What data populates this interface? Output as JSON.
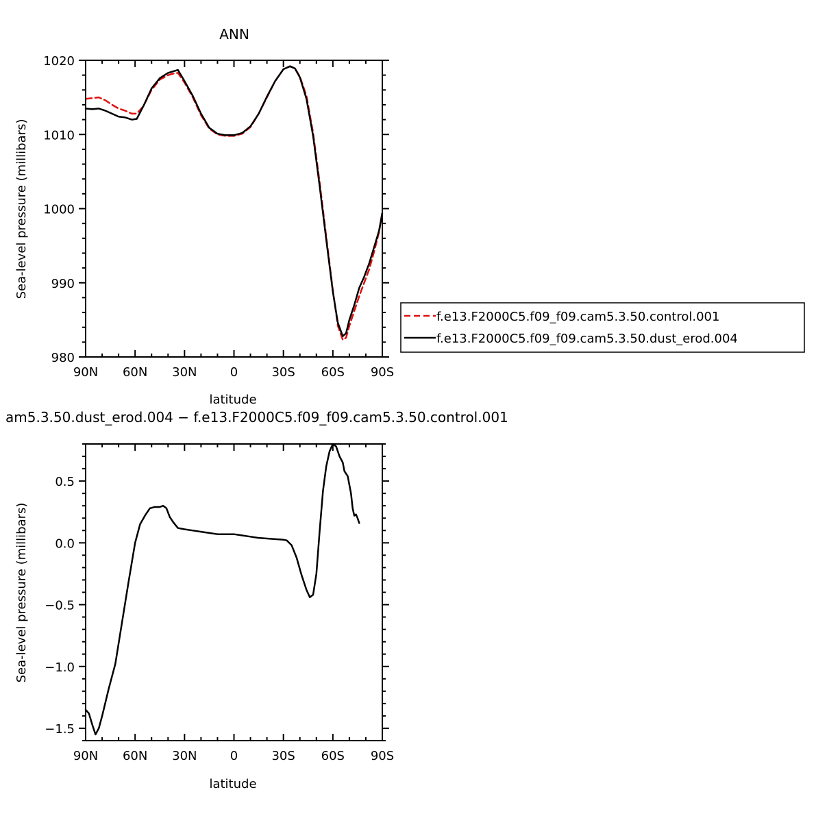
{
  "chart_data": [
    {
      "type": "line",
      "title": "ANN",
      "xlabel": "latitude",
      "ylabel": "Sea-level pressure (millibars)",
      "xlim": [
        -90,
        90
      ],
      "ylim": [
        980,
        1020
      ],
      "x_ticks": [
        -90,
        -60,
        -30,
        0,
        30,
        60,
        90
      ],
      "x_tick_labels": [
        "90N",
        "60N",
        "30N",
        "0",
        "30S",
        "60S",
        "90S"
      ],
      "y_ticks": [
        980,
        990,
        1000,
        1010,
        1020
      ],
      "y_tick_labels": [
        "980",
        "990",
        "1000",
        "1010",
        "1020"
      ],
      "legend_position": "right",
      "series": [
        {
          "name": "f.e13.F2000C5.f09_f09.cam5.3.50.control.001",
          "color": "#e01010",
          "dash": "dashed",
          "points": [
            [
              -90,
              1014.8
            ],
            [
              -86,
              1014.9
            ],
            [
              -82,
              1015.0
            ],
            [
              -78,
              1014.6
            ],
            [
              -74,
              1014.0
            ],
            [
              -70,
              1013.5
            ],
            [
              -66,
              1013.2
            ],
            [
              -62,
              1012.8
            ],
            [
              -59,
              1012.8
            ],
            [
              -55,
              1013.8
            ],
            [
              -50,
              1016.0
            ],
            [
              -45,
              1017.4
            ],
            [
              -40,
              1018.0
            ],
            [
              -37,
              1018.2
            ],
            [
              -34,
              1018.3
            ],
            [
              -30,
              1017.0
            ],
            [
              -25,
              1015.0
            ],
            [
              -20,
              1012.6
            ],
            [
              -15,
              1010.8
            ],
            [
              -10,
              1010.0
            ],
            [
              -5,
              1009.8
            ],
            [
              0,
              1009.8
            ],
            [
              5,
              1010.1
            ],
            [
              10,
              1011.0
            ],
            [
              15,
              1012.8
            ],
            [
              20,
              1015.0
            ],
            [
              25,
              1017.2
            ],
            [
              30,
              1018.8
            ],
            [
              34,
              1019.2
            ],
            [
              37,
              1018.9
            ],
            [
              40,
              1017.8
            ],
            [
              44,
              1015.2
            ],
            [
              48,
              1010.2
            ],
            [
              52,
              1003.5
            ],
            [
              56,
              996.2
            ],
            [
              60,
              989.0
            ],
            [
              63,
              984.2
            ],
            [
              66,
              982.3
            ],
            [
              68,
              982.6
            ],
            [
              70,
              984.2
            ],
            [
              73,
              986.2
            ],
            [
              76,
              988.2
            ],
            [
              79,
              990.0
            ],
            [
              82,
              991.8
            ],
            [
              85,
              994.2
            ],
            [
              88,
              996.8
            ],
            [
              90,
              999.5
            ]
          ]
        },
        {
          "name": "f.e13.F2000C5.f09_f09.cam5.3.50.dust_erod.004",
          "color": "#000000",
          "dash": "solid",
          "points": [
            [
              -90,
              1013.5
            ],
            [
              -86,
              1013.4
            ],
            [
              -82,
              1013.5
            ],
            [
              -78,
              1013.2
            ],
            [
              -74,
              1012.8
            ],
            [
              -70,
              1012.4
            ],
            [
              -66,
              1012.3
            ],
            [
              -62,
              1012.0
            ],
            [
              -59,
              1012.1
            ],
            [
              -55,
              1013.8
            ],
            [
              -50,
              1016.2
            ],
            [
              -45,
              1017.6
            ],
            [
              -40,
              1018.3
            ],
            [
              -37,
              1018.5
            ],
            [
              -34,
              1018.7
            ],
            [
              -30,
              1017.2
            ],
            [
              -25,
              1015.2
            ],
            [
              -20,
              1012.8
            ],
            [
              -15,
              1010.9
            ],
            [
              -10,
              1010.1
            ],
            [
              -5,
              1009.9
            ],
            [
              0,
              1009.9
            ],
            [
              5,
              1010.2
            ],
            [
              10,
              1011.1
            ],
            [
              15,
              1012.8
            ],
            [
              20,
              1015.1
            ],
            [
              25,
              1017.2
            ],
            [
              30,
              1018.8
            ],
            [
              34,
              1019.2
            ],
            [
              37,
              1018.9
            ],
            [
              40,
              1017.7
            ],
            [
              44,
              1014.8
            ],
            [
              48,
              1009.8
            ],
            [
              52,
              1003.0
            ],
            [
              56,
              995.8
            ],
            [
              60,
              988.8
            ],
            [
              63,
              984.6
            ],
            [
              66,
              982.8
            ],
            [
              68,
              983.2
            ],
            [
              70,
              985.0
            ],
            [
              73,
              987.0
            ],
            [
              76,
              989.3
            ],
            [
              79,
              990.8
            ],
            [
              82,
              992.6
            ],
            [
              85,
              994.8
            ],
            [
              88,
              997.0
            ],
            [
              90,
              999.4
            ]
          ]
        }
      ]
    },
    {
      "type": "line",
      "title": "am5.3.50.dust_erod.004 − f.e13.F2000C5.f09_f09.cam5.3.50.control.001",
      "xlabel": "latitude",
      "ylabel": "Sea-level pressure (millibars)",
      "xlim": [
        -90,
        90
      ],
      "ylim": [
        -1.6,
        0.8
      ],
      "x_ticks": [
        -90,
        -60,
        -30,
        0,
        30,
        60,
        90
      ],
      "x_tick_labels": [
        "90N",
        "60N",
        "30N",
        "0",
        "30S",
        "60S",
        "90S"
      ],
      "y_ticks": [
        -1.5,
        -1.0,
        -0.5,
        0.0,
        0.5
      ],
      "y_tick_labels": [
        "−1.5",
        "−1.0",
        "−0.5",
        "0.0",
        "0.5"
      ],
      "series": [
        {
          "color": "#000000",
          "dash": "solid",
          "points": [
            [
              -90,
              -1.35
            ],
            [
              -88,
              -1.38
            ],
            [
              -86,
              -1.47
            ],
            [
              -84,
              -1.55
            ],
            [
              -82,
              -1.5
            ],
            [
              -80,
              -1.4
            ],
            [
              -76,
              -1.18
            ],
            [
              -72,
              -0.98
            ],
            [
              -68,
              -0.65
            ],
            [
              -64,
              -0.32
            ],
            [
              -60,
              0.0
            ],
            [
              -57,
              0.15
            ],
            [
              -54,
              0.22
            ],
            [
              -51,
              0.28
            ],
            [
              -48,
              0.29
            ],
            [
              -45,
              0.29
            ],
            [
              -43,
              0.3
            ],
            [
              -41,
              0.28
            ],
            [
              -39,
              0.21
            ],
            [
              -37,
              0.17
            ],
            [
              -34,
              0.12
            ],
            [
              -30,
              0.11
            ],
            [
              -25,
              0.1
            ],
            [
              -20,
              0.09
            ],
            [
              -15,
              0.08
            ],
            [
              -10,
              0.07
            ],
            [
              -5,
              0.07
            ],
            [
              0,
              0.07
            ],
            [
              5,
              0.06
            ],
            [
              10,
              0.05
            ],
            [
              15,
              0.04
            ],
            [
              20,
              0.035
            ],
            [
              25,
              0.03
            ],
            [
              30,
              0.025
            ],
            [
              32,
              0.02
            ],
            [
              35,
              -0.02
            ],
            [
              38,
              -0.12
            ],
            [
              41,
              -0.26
            ],
            [
              44,
              -0.38
            ],
            [
              46,
              -0.44
            ],
            [
              48,
              -0.42
            ],
            [
              50,
              -0.25
            ],
            [
              52,
              0.1
            ],
            [
              54,
              0.42
            ],
            [
              56,
              0.62
            ],
            [
              58,
              0.74
            ],
            [
              60,
              0.8
            ],
            [
              62,
              0.78
            ],
            [
              64,
              0.7
            ],
            [
              66,
              0.65
            ],
            [
              67,
              0.58
            ],
            [
              69,
              0.54
            ],
            [
              71,
              0.4
            ],
            [
              72,
              0.28
            ],
            [
              73,
              0.22
            ],
            [
              74,
              0.23
            ],
            [
              75,
              0.2
            ],
            [
              76,
              0.16
            ]
          ]
        }
      ]
    }
  ]
}
